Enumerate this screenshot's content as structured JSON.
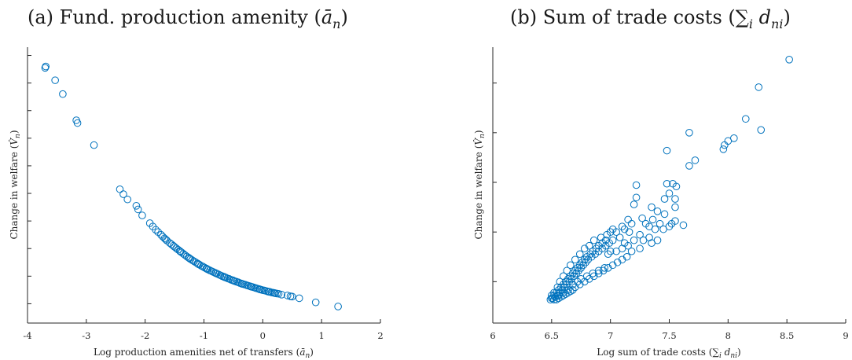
{
  "chart_data": [
    {
      "type": "scatter",
      "title": "(a) Fund. production amenity (ā_n)",
      "title_plain": "(a) Fund. production amenity (",
      "title_math": "ā",
      "title_sub": "n",
      "title_close": ")",
      "xlabel": "Log production amenities net of transfers (ā_n)",
      "xlabel_plain": "Log production amenities net of transfers (",
      "xlabel_math": "ā",
      "xlabel_sub": "n",
      "xlabel_close": ")",
      "ylabel": "Change in welfare (V̂_n)",
      "ylabel_plain": "Change in welfare (",
      "ylabel_math": "V̂",
      "ylabel_sub": "n",
      "ylabel_close": ")",
      "xlim": [
        -4,
        2
      ],
      "ylim": [
        0,
        1
      ],
      "xticks": [
        -4,
        -3,
        -2,
        -1,
        0,
        1,
        2
      ],
      "yticks": [
        0.07,
        0.17,
        0.27,
        0.37,
        0.47,
        0.57,
        0.67,
        0.77,
        0.87,
        0.97
      ],
      "ytick_labels_shown": false,
      "color": "#0072bd",
      "marker": "open-circle",
      "grid": false,
      "points": [
        [
          -3.7,
          0.925
        ],
        [
          -3.69,
          0.93
        ],
        [
          -3.53,
          0.88
        ],
        [
          -3.4,
          0.83
        ],
        [
          -3.17,
          0.735
        ],
        [
          -3.15,
          0.725
        ],
        [
          -2.87,
          0.645
        ],
        [
          -2.43,
          0.485
        ],
        [
          -2.37,
          0.467
        ],
        [
          -2.3,
          0.448
        ],
        [
          -2.15,
          0.425
        ],
        [
          -2.12,
          0.412
        ],
        [
          -2.05,
          0.39
        ],
        [
          -1.92,
          0.362
        ],
        [
          -1.87,
          0.35
        ],
        [
          -1.82,
          0.338
        ],
        [
          -1.78,
          0.33
        ],
        [
          -1.73,
          0.32
        ],
        [
          -1.7,
          0.313
        ],
        [
          -1.67,
          0.307
        ],
        [
          -1.63,
          0.299
        ],
        [
          -1.58,
          0.29
        ],
        [
          -1.55,
          0.285
        ],
        [
          -1.5,
          0.276
        ],
        [
          -1.47,
          0.271
        ],
        [
          -1.44,
          0.266
        ],
        [
          -1.41,
          0.261
        ],
        [
          -1.38,
          0.256
        ],
        [
          -1.35,
          0.251
        ],
        [
          -1.32,
          0.246
        ],
        [
          -1.29,
          0.241
        ],
        [
          -1.26,
          0.237
        ],
        [
          -1.23,
          0.232
        ],
        [
          -1.2,
          0.228
        ],
        [
          -1.17,
          0.224
        ],
        [
          -1.14,
          0.22
        ],
        [
          -1.11,
          0.216
        ],
        [
          -1.08,
          0.212
        ],
        [
          -1.05,
          0.208
        ],
        [
          -1.02,
          0.205
        ],
        [
          -0.99,
          0.201
        ],
        [
          -0.96,
          0.198
        ],
        [
          -0.93,
          0.194
        ],
        [
          -0.9,
          0.191
        ],
        [
          -0.87,
          0.188
        ],
        [
          -0.84,
          0.185
        ],
        [
          -0.81,
          0.182
        ],
        [
          -0.78,
          0.179
        ],
        [
          -0.75,
          0.176
        ],
        [
          -0.72,
          0.173
        ],
        [
          -0.69,
          0.17
        ],
        [
          -0.66,
          0.168
        ],
        [
          -0.63,
          0.165
        ],
        [
          -0.6,
          0.162
        ],
        [
          -0.57,
          0.16
        ],
        [
          -0.54,
          0.157
        ],
        [
          -0.51,
          0.155
        ],
        [
          -0.48,
          0.152
        ],
        [
          -0.45,
          0.15
        ],
        [
          -0.42,
          0.148
        ],
        [
          -0.39,
          0.145
        ],
        [
          -0.36,
          0.143
        ],
        [
          -0.33,
          0.141
        ],
        [
          -0.3,
          0.139
        ],
        [
          -0.27,
          0.137
        ],
        [
          -0.24,
          0.135
        ],
        [
          -0.21,
          0.133
        ],
        [
          -0.18,
          0.131
        ],
        [
          -0.15,
          0.129
        ],
        [
          -0.12,
          0.127
        ],
        [
          -0.09,
          0.125
        ],
        [
          -0.06,
          0.123
        ],
        [
          -0.03,
          0.121
        ],
        [
          0.0,
          0.119
        ],
        [
          0.03,
          0.118
        ],
        [
          0.06,
          0.116
        ],
        [
          0.09,
          0.114
        ],
        [
          0.12,
          0.113
        ],
        [
          0.15,
          0.111
        ],
        [
          0.18,
          0.11
        ],
        [
          0.21,
          0.108
        ],
        [
          0.24,
          0.107
        ],
        [
          0.27,
          0.106
        ],
        [
          0.32,
          0.103
        ],
        [
          0.42,
          0.1
        ],
        [
          0.47,
          0.097
        ],
        [
          0.5,
          0.096
        ],
        [
          0.62,
          0.09
        ],
        [
          0.9,
          0.075
        ],
        [
          1.28,
          0.06
        ],
        [
          -1.65,
          0.303
        ],
        [
          -1.52,
          0.28
        ],
        [
          -1.4,
          0.259
        ],
        [
          -1.25,
          0.235
        ],
        [
          -1.1,
          0.214
        ],
        [
          -0.95,
          0.196
        ],
        [
          -0.8,
          0.181
        ],
        [
          -0.65,
          0.166
        ],
        [
          -0.5,
          0.154
        ],
        [
          -0.35,
          0.142
        ],
        [
          -0.2,
          0.132
        ],
        [
          -0.05,
          0.122
        ],
        [
          0.1,
          0.114
        ],
        [
          0.2,
          0.109
        ]
      ]
    },
    {
      "type": "scatter",
      "title": "(b) Sum of trade costs (∑_i d_ni)",
      "title_plain": "(b) Sum of trade costs (",
      "title_math": "∑",
      "title_sub": "i",
      "title_math2": " d",
      "title_sub2": "ni",
      "title_close": ")",
      "xlabel": "Log sum of trade costs (∑_i d_ni)",
      "xlabel_plain": "Log sum of trade costs (",
      "xlabel_math": "∑",
      "xlabel_sub": "i",
      "xlabel_math2": " d",
      "xlabel_sub2": "ni",
      "xlabel_close": ")",
      "ylabel": "Change in welfare (V̂_n)",
      "ylabel_plain": "Change in welfare (",
      "ylabel_math": "V̂",
      "ylabel_sub": "n",
      "ylabel_close": ")",
      "xlim": [
        6,
        9
      ],
      "ylim": [
        0,
        1
      ],
      "xticks": [
        6,
        6.5,
        7,
        7.5,
        8,
        8.5,
        9
      ],
      "yticks": [
        0.15,
        0.33,
        0.51,
        0.69,
        0.87
      ],
      "ytick_labels_shown": false,
      "color": "#0072bd",
      "marker": "open-circle",
      "grid": false,
      "points": [
        [
          8.52,
          0.955
        ],
        [
          8.26,
          0.855
        ],
        [
          8.15,
          0.74
        ],
        [
          8.28,
          0.7
        ],
        [
          8.05,
          0.67
        ],
        [
          8.0,
          0.66
        ],
        [
          7.97,
          0.645
        ],
        [
          7.96,
          0.63
        ],
        [
          7.67,
          0.69
        ],
        [
          7.72,
          0.59
        ],
        [
          7.67,
          0.57
        ],
        [
          7.48,
          0.625
        ],
        [
          7.48,
          0.505
        ],
        [
          7.53,
          0.505
        ],
        [
          7.56,
          0.495
        ],
        [
          7.5,
          0.47
        ],
        [
          7.46,
          0.45
        ],
        [
          7.55,
          0.45
        ],
        [
          7.22,
          0.5
        ],
        [
          7.22,
          0.455
        ],
        [
          7.2,
          0.43
        ],
        [
          7.35,
          0.42
        ],
        [
          7.4,
          0.405
        ],
        [
          7.46,
          0.395
        ],
        [
          7.55,
          0.42
        ],
        [
          7.62,
          0.355
        ],
        [
          7.52,
          0.36
        ],
        [
          7.45,
          0.34
        ],
        [
          7.36,
          0.375
        ],
        [
          7.33,
          0.35
        ],
        [
          7.3,
          0.36
        ],
        [
          7.27,
          0.38
        ],
        [
          7.18,
          0.36
        ],
        [
          7.15,
          0.375
        ],
        [
          7.12,
          0.34
        ],
        [
          7.1,
          0.35
        ],
        [
          7.05,
          0.33
        ],
        [
          7.16,
          0.33
        ],
        [
          7.25,
          0.32
        ],
        [
          7.33,
          0.31
        ],
        [
          7.38,
          0.34
        ],
        [
          7.42,
          0.36
        ],
        [
          7.5,
          0.35
        ],
        [
          7.55,
          0.37
        ],
        [
          7.4,
          0.3
        ],
        [
          7.35,
          0.29
        ],
        [
          7.28,
          0.3
        ],
        [
          7.2,
          0.3
        ],
        [
          7.15,
          0.28
        ],
        [
          7.1,
          0.27
        ],
        [
          7.05,
          0.26
        ],
        [
          7.0,
          0.26
        ],
        [
          6.98,
          0.25
        ],
        [
          7.0,
          0.33
        ],
        [
          6.96,
          0.3
        ],
        [
          6.93,
          0.29
        ],
        [
          6.9,
          0.28
        ],
        [
          6.88,
          0.27
        ],
        [
          6.85,
          0.26
        ],
        [
          6.83,
          0.25
        ],
        [
          6.8,
          0.24
        ],
        [
          6.78,
          0.23
        ],
        [
          6.76,
          0.22
        ],
        [
          6.74,
          0.21
        ],
        [
          6.72,
          0.2
        ],
        [
          6.7,
          0.19
        ],
        [
          6.68,
          0.18
        ],
        [
          6.66,
          0.17
        ],
        [
          6.64,
          0.16
        ],
        [
          6.62,
          0.15
        ],
        [
          6.6,
          0.14
        ],
        [
          6.58,
          0.13
        ],
        [
          6.56,
          0.12
        ],
        [
          6.54,
          0.11
        ],
        [
          6.52,
          0.1
        ],
        [
          6.5,
          0.09
        ],
        [
          6.49,
          0.085
        ],
        [
          6.51,
          0.09
        ],
        [
          6.53,
          0.095
        ],
        [
          6.55,
          0.1
        ],
        [
          6.57,
          0.11
        ],
        [
          6.59,
          0.12
        ],
        [
          6.61,
          0.13
        ],
        [
          6.63,
          0.14
        ],
        [
          6.65,
          0.15
        ],
        [
          6.67,
          0.16
        ],
        [
          6.69,
          0.17
        ],
        [
          6.71,
          0.18
        ],
        [
          6.73,
          0.19
        ],
        [
          6.75,
          0.2
        ],
        [
          6.77,
          0.21
        ],
        [
          6.79,
          0.22
        ],
        [
          6.81,
          0.23
        ],
        [
          6.84,
          0.24
        ],
        [
          6.87,
          0.25
        ],
        [
          6.9,
          0.26
        ],
        [
          6.93,
          0.27
        ],
        [
          6.96,
          0.28
        ],
        [
          6.99,
          0.29
        ],
        [
          7.02,
          0.3
        ],
        [
          6.95,
          0.2
        ],
        [
          6.9,
          0.19
        ],
        [
          6.85,
          0.18
        ],
        [
          6.8,
          0.17
        ],
        [
          6.75,
          0.16
        ],
        [
          6.72,
          0.15
        ],
        [
          6.68,
          0.14
        ],
        [
          6.64,
          0.12
        ],
        [
          6.6,
          0.11
        ],
        [
          6.56,
          0.1
        ],
        [
          6.52,
          0.085
        ],
        [
          6.54,
          0.085
        ],
        [
          6.56,
          0.09
        ],
        [
          6.58,
          0.095
        ],
        [
          6.6,
          0.1
        ],
        [
          6.62,
          0.105
        ],
        [
          6.64,
          0.11
        ],
        [
          6.66,
          0.115
        ],
        [
          6.68,
          0.12
        ],
        [
          6.7,
          0.13
        ],
        [
          6.74,
          0.14
        ],
        [
          6.78,
          0.15
        ],
        [
          6.82,
          0.16
        ],
        [
          6.86,
          0.17
        ],
        [
          6.9,
          0.18
        ],
        [
          6.94,
          0.19
        ],
        [
          6.98,
          0.2
        ],
        [
          7.02,
          0.21
        ],
        [
          7.06,
          0.22
        ],
        [
          7.1,
          0.23
        ],
        [
          7.14,
          0.24
        ],
        [
          7.18,
          0.26
        ],
        [
          6.5,
          0.1
        ],
        [
          6.52,
          0.11
        ],
        [
          6.55,
          0.13
        ],
        [
          6.57,
          0.15
        ],
        [
          6.6,
          0.17
        ],
        [
          6.63,
          0.19
        ],
        [
          6.66,
          0.21
        ],
        [
          6.7,
          0.23
        ],
        [
          6.74,
          0.25
        ],
        [
          6.78,
          0.27
        ],
        [
          6.82,
          0.28
        ],
        [
          6.86,
          0.3
        ],
        [
          6.92,
          0.31
        ],
        [
          6.97,
          0.32
        ],
        [
          7.02,
          0.34
        ],
        [
          7.08,
          0.31
        ],
        [
          7.12,
          0.29
        ],
        [
          7.25,
          0.27
        ]
      ]
    }
  ]
}
